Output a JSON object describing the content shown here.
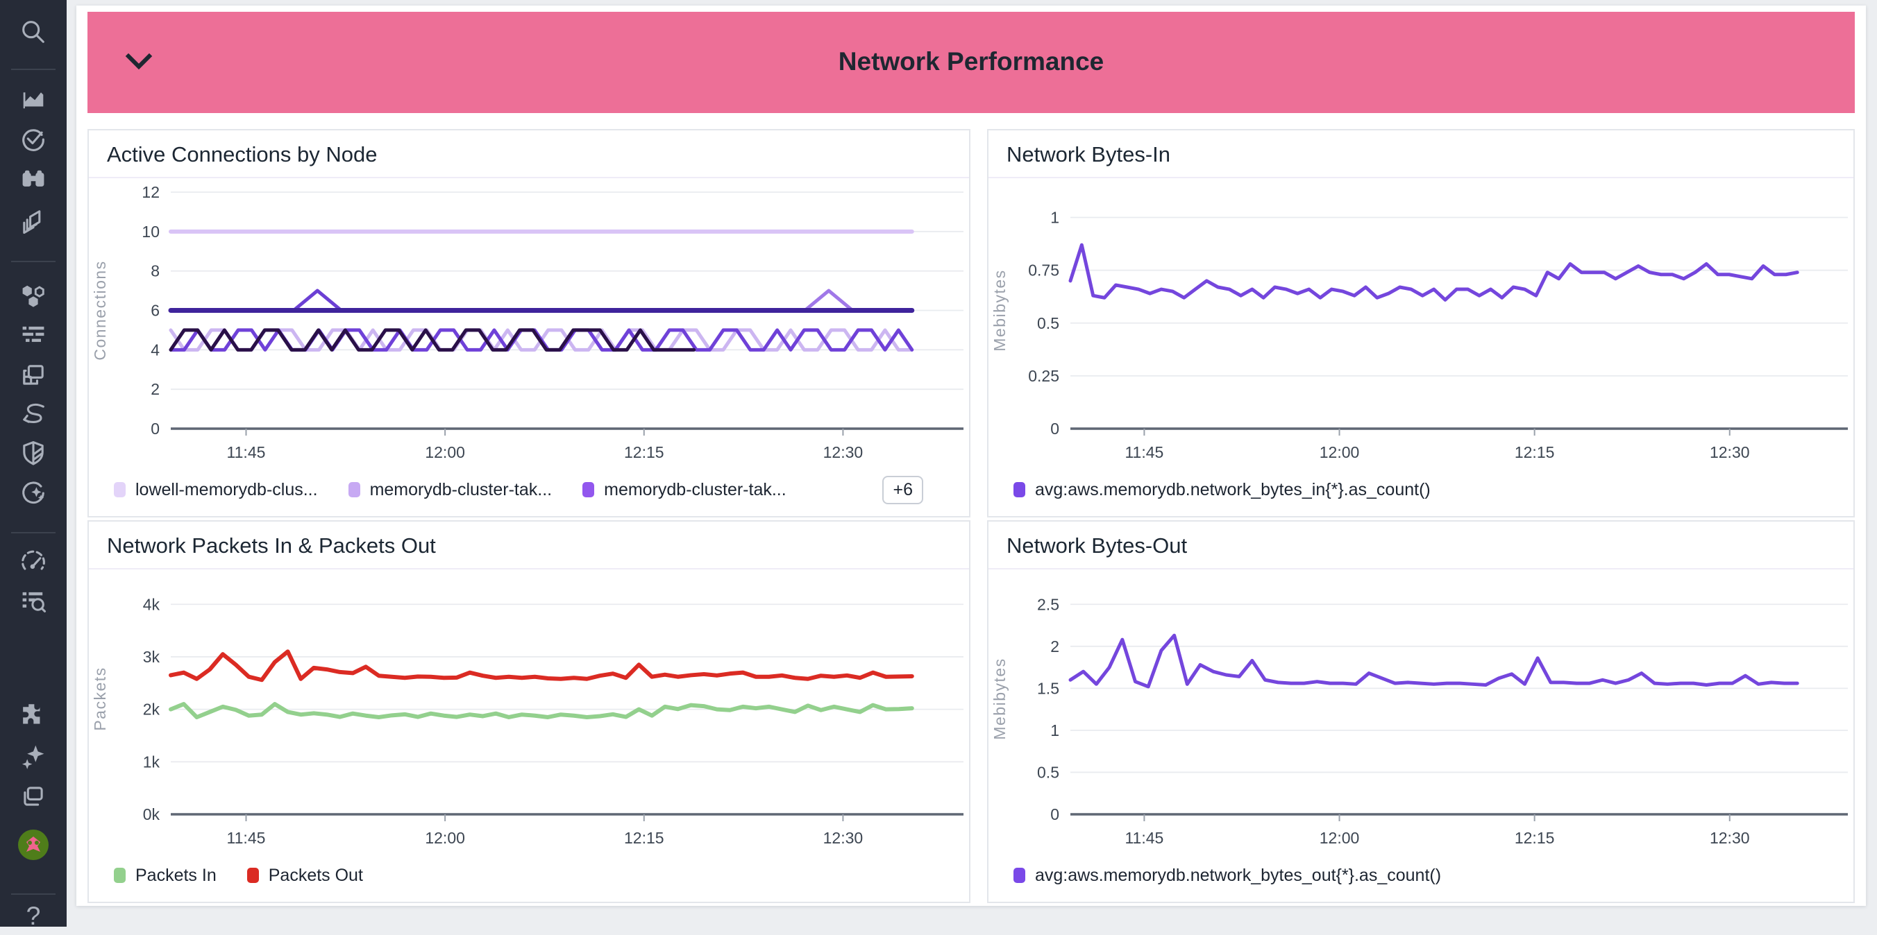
{
  "header": {
    "title": "Network Performance"
  },
  "sidebar": {
    "items": [
      "search",
      "metrics",
      "monitors",
      "watchdog",
      "dashboards",
      "infrastructure",
      "logs",
      "apm",
      "pipelines",
      "security",
      "service-management",
      "performance",
      "log-explorer",
      "integrations",
      "ai-assistant",
      "workspaces",
      "user-avatar",
      "help"
    ]
  },
  "colors": {
    "banner": "#ed6f97",
    "sidebar_bg": "#262b37",
    "grid": "#e9ebef",
    "axis": "#5f6774",
    "tick_text": "#3d4652",
    "unit_text": "#9aa0ab"
  },
  "chart_data": [
    {
      "type": "line",
      "title": "Active Connections by Node",
      "ylabel": "Connections",
      "ymax": 12,
      "yticks": [
        {
          "v": 0,
          "label": "0"
        },
        {
          "v": 2,
          "label": "2"
        },
        {
          "v": 4,
          "label": "4"
        },
        {
          "v": 6,
          "label": "6"
        },
        {
          "v": 8,
          "label": "8"
        },
        {
          "v": 10,
          "label": "10"
        },
        {
          "v": 12,
          "label": "12"
        }
      ],
      "xticks": [
        {
          "f": 0.095,
          "label": "11:45"
        },
        {
          "f": 0.346,
          "label": "12:00"
        },
        {
          "f": 0.597,
          "label": "12:15"
        },
        {
          "f": 0.848,
          "label": "12:30"
        }
      ],
      "series": [
        {
          "name": "flat-10",
          "color": "#d9c4f6",
          "width": 6,
          "points": [
            [
              0,
              10
            ],
            [
              0.935,
              10
            ]
          ]
        },
        {
          "name": "spike-1150",
          "color": "#6b3fd4",
          "width": 5,
          "points": [
            [
              0.155,
              6
            ],
            [
              0.185,
              7
            ],
            [
              0.215,
              6
            ]
          ]
        },
        {
          "name": "spike-1225",
          "color": "#a078e8",
          "width": 5,
          "points": [
            [
              0.8,
              6
            ],
            [
              0.83,
              7
            ],
            [
              0.86,
              6
            ]
          ]
        },
        {
          "name": "flat-6",
          "color": "#3f249c",
          "width": 7,
          "points": [
            [
              0,
              6
            ],
            [
              0.935,
              6
            ]
          ]
        },
        {
          "name": "zigzag-light",
          "color": "#ccb6f1",
          "width": 5,
          "span": 0.935,
          "values": [
            5,
            4,
            4,
            5,
            5,
            4,
            4,
            5,
            5,
            5,
            4,
            4,
            5,
            5,
            4,
            5,
            4,
            4,
            5,
            5,
            4,
            4,
            5,
            5,
            4,
            5,
            4,
            4,
            5,
            5,
            4,
            4,
            5,
            4,
            5,
            5,
            4,
            4,
            5,
            5,
            4,
            4,
            5,
            5,
            4,
            4,
            5,
            4,
            4,
            5,
            5,
            4,
            4,
            5,
            4,
            4
          ]
        },
        {
          "name": "zigzag-medium",
          "color": "#6f41d8",
          "width": 5,
          "span": 0.935,
          "values": [
            4,
            4,
            5,
            4,
            4,
            5,
            5,
            4,
            5,
            4,
            4,
            5,
            4,
            5,
            5,
            4,
            4,
            5,
            4,
            4,
            5,
            5,
            4,
            4,
            5,
            4,
            5,
            5,
            4,
            4,
            5,
            5,
            4,
            4,
            5,
            4,
            4,
            5,
            5,
            4,
            4,
            5,
            5,
            4,
            4,
            5,
            4,
            5,
            5,
            4,
            4,
            5,
            5,
            4,
            5,
            4
          ]
        },
        {
          "name": "zigzag-dark",
          "color": "#2a1048",
          "width": 5,
          "span": 0.66,
          "values": [
            4,
            5,
            5,
            4,
            5,
            4,
            4,
            5,
            5,
            4,
            4,
            5,
            4,
            5,
            4,
            4,
            5,
            5,
            4,
            5,
            4,
            4,
            5,
            5,
            4,
            4,
            5,
            5,
            4,
            4,
            5,
            5,
            5,
            4,
            4,
            5,
            4,
            4,
            4,
            4
          ]
        }
      ],
      "legend": [
        {
          "label": "lowell-memorydb-clus...",
          "color": "#e3d4f9"
        },
        {
          "label": "memorydb-cluster-tak...",
          "color": "#c7a9f3"
        },
        {
          "label": "memorydb-cluster-tak...",
          "color": "#9257ee"
        }
      ],
      "legend_more": "+6"
    },
    {
      "type": "line",
      "title": "Network Bytes-In",
      "ylabel": "Mebibytes",
      "ymax": 1.12,
      "yticks": [
        {
          "v": 0,
          "label": "0"
        },
        {
          "v": 0.25,
          "label": "0.25"
        },
        {
          "v": 0.5,
          "label": "0.5"
        },
        {
          "v": 0.75,
          "label": "0.75"
        },
        {
          "v": 1,
          "label": "1"
        }
      ],
      "xticks": [
        {
          "f": 0.095,
          "label": "11:45"
        },
        {
          "f": 0.346,
          "label": "12:00"
        },
        {
          "f": 0.597,
          "label": "12:15"
        },
        {
          "f": 0.848,
          "label": "12:30"
        }
      ],
      "series": [
        {
          "name": "bytes-in",
          "color": "#7446dd",
          "width": 5,
          "span": 0.935,
          "values": [
            0.7,
            0.87,
            0.63,
            0.62,
            0.68,
            0.67,
            0.66,
            0.64,
            0.66,
            0.65,
            0.62,
            0.66,
            0.7,
            0.67,
            0.66,
            0.63,
            0.66,
            0.62,
            0.67,
            0.66,
            0.64,
            0.66,
            0.62,
            0.66,
            0.65,
            0.63,
            0.67,
            0.62,
            0.64,
            0.67,
            0.66,
            0.63,
            0.66,
            0.61,
            0.66,
            0.66,
            0.63,
            0.66,
            0.62,
            0.67,
            0.66,
            0.63,
            0.74,
            0.71,
            0.78,
            0.74,
            0.74,
            0.74,
            0.71,
            0.74,
            0.77,
            0.74,
            0.73,
            0.73,
            0.71,
            0.74,
            0.78,
            0.73,
            0.73,
            0.72,
            0.71,
            0.77,
            0.73,
            0.73,
            0.74
          ]
        }
      ],
      "legend": [
        {
          "label": "avg:aws.memorydb.network_bytes_in{*}.as_count()",
          "color": "#7a49e8"
        }
      ]
    },
    {
      "type": "line",
      "title": "Network Packets In & Packets Out",
      "ylabel": "Packets",
      "ymax": 4400,
      "yticks": [
        {
          "v": 0,
          "label": "0k"
        },
        {
          "v": 1000,
          "label": "1k"
        },
        {
          "v": 2000,
          "label": "2k"
        },
        {
          "v": 3000,
          "label": "3k"
        },
        {
          "v": 4000,
          "label": "4k"
        }
      ],
      "xticks": [
        {
          "f": 0.095,
          "label": "11:45"
        },
        {
          "f": 0.346,
          "label": "12:00"
        },
        {
          "f": 0.597,
          "label": "12:15"
        },
        {
          "f": 0.848,
          "label": "12:30"
        }
      ],
      "series": [
        {
          "name": "packets-in",
          "color": "#93d08d",
          "width": 6,
          "span": 0.935,
          "values": [
            2000,
            2100,
            1850,
            1950,
            2050,
            1990,
            1880,
            1900,
            2100,
            1950,
            1900,
            1925,
            1900,
            1855,
            1920,
            1880,
            1850,
            1885,
            1905,
            1855,
            1920,
            1880,
            1855,
            1900,
            1870,
            1920,
            1850,
            1900,
            1880,
            1850,
            1900,
            1880,
            1850,
            1870,
            1905,
            1855,
            2000,
            1880,
            2050,
            2005,
            2080,
            2060,
            2000,
            1985,
            2050,
            2020,
            2050,
            2000,
            1950,
            2070,
            1985,
            2050,
            2000,
            1950,
            2080,
            2000,
            2005,
            2020
          ]
        },
        {
          "name": "packets-out",
          "color": "#db2b23",
          "width": 6,
          "span": 0.935,
          "values": [
            2650,
            2700,
            2580,
            2760,
            3050,
            2850,
            2620,
            2560,
            2900,
            3100,
            2580,
            2790,
            2760,
            2710,
            2690,
            2810,
            2640,
            2620,
            2600,
            2625,
            2620,
            2600,
            2605,
            2700,
            2640,
            2600,
            2620,
            2600,
            2620,
            2590,
            2580,
            2600,
            2580,
            2640,
            2680,
            2600,
            2850,
            2620,
            2660,
            2620,
            2650,
            2670,
            2645,
            2680,
            2700,
            2620,
            2620,
            2645,
            2600,
            2580,
            2640,
            2620,
            2645,
            2600,
            2700,
            2620,
            2625,
            2630
          ]
        }
      ],
      "legend": [
        {
          "label": "Packets In",
          "color": "#93d08d"
        },
        {
          "label": "Packets Out",
          "color": "#db2b23"
        }
      ]
    },
    {
      "type": "line",
      "title": "Network Bytes-Out",
      "ylabel": "Mebibytes",
      "ymax": 2.75,
      "yticks": [
        {
          "v": 0,
          "label": "0"
        },
        {
          "v": 0.5,
          "label": "0.5"
        },
        {
          "v": 1,
          "label": "1"
        },
        {
          "v": 1.5,
          "label": "1.5"
        },
        {
          "v": 2,
          "label": "2"
        },
        {
          "v": 2.5,
          "label": "2.5"
        }
      ],
      "xticks": [
        {
          "f": 0.095,
          "label": "11:45"
        },
        {
          "f": 0.346,
          "label": "12:00"
        },
        {
          "f": 0.597,
          "label": "12:15"
        },
        {
          "f": 0.848,
          "label": "12:30"
        }
      ],
      "series": [
        {
          "name": "bytes-out",
          "color": "#7446dd",
          "width": 5,
          "span": 0.935,
          "values": [
            1.6,
            1.7,
            1.55,
            1.75,
            2.08,
            1.58,
            1.52,
            1.95,
            2.13,
            1.55,
            1.78,
            1.7,
            1.66,
            1.64,
            1.83,
            1.6,
            1.57,
            1.56,
            1.56,
            1.58,
            1.56,
            1.56,
            1.55,
            1.68,
            1.62,
            1.56,
            1.57,
            1.56,
            1.55,
            1.56,
            1.56,
            1.55,
            1.54,
            1.62,
            1.67,
            1.55,
            1.86,
            1.57,
            1.57,
            1.56,
            1.56,
            1.6,
            1.56,
            1.6,
            1.68,
            1.56,
            1.55,
            1.56,
            1.56,
            1.54,
            1.56,
            1.56,
            1.65,
            1.55,
            1.57,
            1.56,
            1.56
          ]
        }
      ],
      "legend": [
        {
          "label": "avg:aws.memorydb.network_bytes_out{*}.as_count()",
          "color": "#7a49e8"
        }
      ]
    }
  ]
}
